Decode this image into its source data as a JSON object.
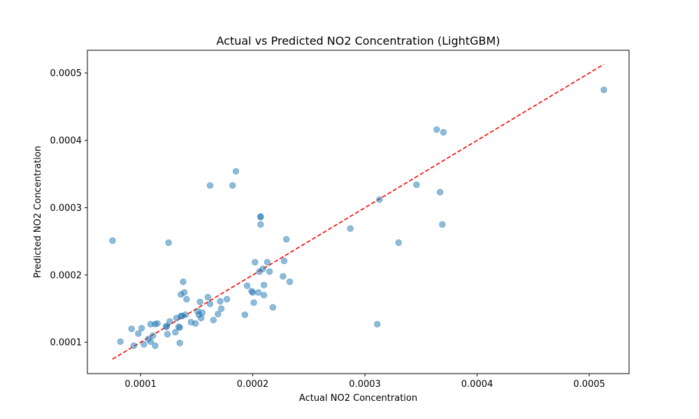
{
  "chart_data": {
    "type": "scatter",
    "title": "Actual vs Predicted NO2 Concentration (LightGBM)",
    "xlabel": "Actual NO2 Concentration",
    "ylabel": "Predicted NO2 Concentration",
    "xlim": [
      5.26e-05,
      0.0005355
    ],
    "ylim": [
      5.35e-05,
      0.0005338
    ],
    "xticks": [
      {
        "value": 0.0001,
        "label": "0.0001"
      },
      {
        "value": 0.0002,
        "label": "0.0002"
      },
      {
        "value": 0.0003,
        "label": "0.0003"
      },
      {
        "value": 0.0004,
        "label": "0.0004"
      },
      {
        "value": 0.0005,
        "label": "0.0005"
      }
    ],
    "yticks": [
      {
        "value": 0.0001,
        "label": "0.0001"
      },
      {
        "value": 0.0002,
        "label": "0.0002"
      },
      {
        "value": 0.0003,
        "label": "0.0003"
      },
      {
        "value": 0.0004,
        "label": "0.0004"
      },
      {
        "value": 0.0005,
        "label": "0.0005"
      }
    ],
    "grid": false,
    "marker_color": "#1f77b4",
    "marker_alpha": 0.5,
    "reference_line": {
      "from": [
        7.5e-05,
        7.5e-05
      ],
      "to": [
        0.000513,
        0.000513
      ],
      "color": "#ff0000",
      "style": "dashed"
    },
    "points": [
      [
        7.5e-05,
        0.000251
      ],
      [
        8.2e-05,
        0.000101
      ],
      [
        9.2e-05,
        0.00012
      ],
      [
        9.4e-05,
        9.5e-05
      ],
      [
        9.8e-05,
        0.000113
      ],
      [
        0.000101,
        0.000121
      ],
      [
        0.000103,
        9.7e-05
      ],
      [
        0.000107,
        0.000105
      ],
      [
        0.000109,
        0.000127
      ],
      [
        0.000109,
        0.000101
      ],
      [
        0.000111,
        0.00011
      ],
      [
        0.000113,
        9.5e-05
      ],
      [
        0.000113,
        0.000127
      ],
      [
        0.000115,
        0.000128
      ],
      [
        0.000123,
        0.000124
      ],
      [
        0.000123,
        0.000123
      ],
      [
        0.000124,
        0.000112
      ],
      [
        0.000125,
        0.000248
      ],
      [
        0.000126,
        0.000131
      ],
      [
        0.000131,
        0.000115
      ],
      [
        0.000132,
        0.000136
      ],
      [
        0.000134,
        0.000123
      ],
      [
        0.000135,
        9.9e-05
      ],
      [
        0.000135,
        0.000122
      ],
      [
        0.000136,
        0.000139
      ],
      [
        0.000136,
        0.000171
      ],
      [
        0.000137,
        0.000139
      ],
      [
        0.000138,
        0.00019
      ],
      [
        0.000139,
        0.000174
      ],
      [
        0.00014,
        0.000141
      ],
      [
        0.000141,
        0.000164
      ],
      [
        0.000145,
        0.00013
      ],
      [
        0.000149,
        0.000128
      ],
      [
        0.000151,
        0.000146
      ],
      [
        0.000152,
        0.000141
      ],
      [
        0.000153,
        0.00016
      ],
      [
        0.000154,
        0.000136
      ],
      [
        0.000155,
        0.000144
      ],
      [
        0.00016,
        0.000167
      ],
      [
        0.000162,
        0.000157
      ],
      [
        0.000162,
        0.000333
      ],
      [
        0.000165,
        0.000133
      ],
      [
        0.000169,
        0.000142
      ],
      [
        0.000171,
        0.000161
      ],
      [
        0.000172,
        0.00015
      ],
      [
        0.000177,
        0.000164
      ],
      [
        0.000182,
        0.000333
      ],
      [
        0.000185,
        0.000354
      ],
      [
        0.000193,
        0.000141
      ],
      [
        0.000195,
        0.000184
      ],
      [
        0.000199,
        0.000176
      ],
      [
        0.0002,
        0.000174
      ],
      [
        0.000201,
        0.000159
      ],
      [
        0.000202,
        0.000219
      ],
      [
        0.000205,
        0.000174
      ],
      [
        0.000206,
        0.000205
      ],
      [
        0.000207,
        0.000286
      ],
      [
        0.000207,
        0.000287
      ],
      [
        0.000207,
        0.000275
      ],
      [
        0.000209,
        0.000209
      ],
      [
        0.00021,
        0.000185
      ],
      [
        0.00021,
        0.00017
      ],
      [
        0.000213,
        0.000219
      ],
      [
        0.000215,
        0.000205
      ],
      [
        0.000218,
        0.000152
      ],
      [
        0.000227,
        0.000198
      ],
      [
        0.000228,
        0.000221
      ],
      [
        0.00023,
        0.000253
      ],
      [
        0.000233,
        0.00019
      ],
      [
        0.000287,
        0.000269
      ],
      [
        0.000311,
        0.000127
      ],
      [
        0.000313,
        0.000312
      ],
      [
        0.00033,
        0.000248
      ],
      [
        0.000346,
        0.000334
      ],
      [
        0.000364,
        0.000416
      ],
      [
        0.000367,
        0.000323
      ],
      [
        0.000369,
        0.000275
      ],
      [
        0.00037,
        0.000412
      ],
      [
        0.000513,
        0.000475
      ]
    ]
  }
}
